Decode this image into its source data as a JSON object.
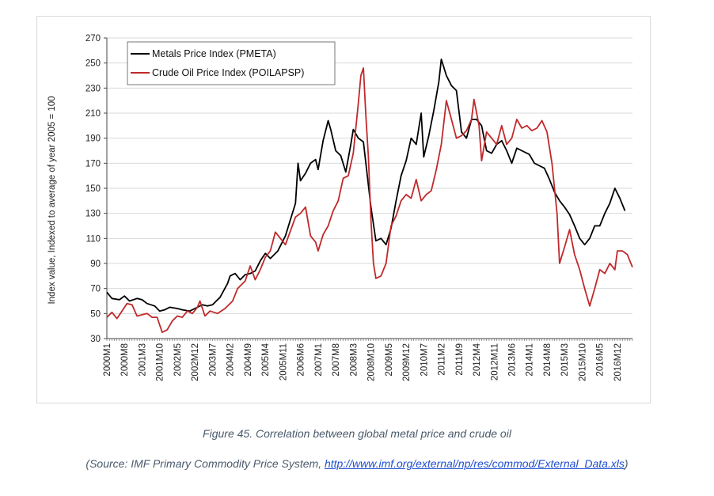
{
  "caption": {
    "figure": "Figure 45. Correlation between global metal price and crude oil",
    "source_prefix": "(Source: IMF Primary Commodity Price System, ",
    "source_link": "http://www.imf.org/external/np/res/commod/External_Data.xls",
    "source_suffix": ")"
  },
  "chart_data": {
    "type": "line",
    "title": "",
    "xlabel": "",
    "ylabel": "Index value, Indexed to average of year 2005 = 100",
    "ylim": [
      30,
      270
    ],
    "yticks": [
      30,
      50,
      70,
      90,
      110,
      130,
      150,
      170,
      190,
      210,
      230,
      250,
      270
    ],
    "xtick_labels": [
      "2000M1",
      "2000M8",
      "2001M3",
      "2001M10",
      "2002M5",
      "2002M12",
      "2003M7",
      "2004M2",
      "2004M9",
      "2005M4",
      "2005M11",
      "2006M6",
      "2007M1",
      "2007M8",
      "2008M3",
      "2008M10",
      "2009M5",
      "2009M12",
      "2010M7",
      "2011M2",
      "2011M9",
      "2012M4",
      "2012M11",
      "2013M6",
      "2014M1",
      "2014M8",
      "2015M3",
      "2015M10",
      "2016M5",
      "2016M12"
    ],
    "grid": true,
    "legend_position": "top-left",
    "series": [
      {
        "name": "Metals Price Index (PMETA)",
        "color": "#000000",
        "points": [
          [
            "2000-01",
            67
          ],
          [
            "2000-03",
            62
          ],
          [
            "2000-06",
            61
          ],
          [
            "2000-08",
            64
          ],
          [
            "2000-10",
            60
          ],
          [
            "2001-01",
            62
          ],
          [
            "2001-03",
            61
          ],
          [
            "2001-05",
            58
          ],
          [
            "2001-08",
            56
          ],
          [
            "2001-10",
            52
          ],
          [
            "2001-12",
            53
          ],
          [
            "2002-02",
            55
          ],
          [
            "2002-05",
            54
          ],
          [
            "2002-07",
            53
          ],
          [
            "2002-10",
            52
          ],
          [
            "2002-12",
            54
          ],
          [
            "2003-03",
            57
          ],
          [
            "2003-05",
            56
          ],
          [
            "2003-07",
            57
          ],
          [
            "2003-10",
            63
          ],
          [
            "2004-01",
            74
          ],
          [
            "2004-02",
            80
          ],
          [
            "2004-04",
            82
          ],
          [
            "2004-06",
            77
          ],
          [
            "2004-08",
            81
          ],
          [
            "2004-10",
            82
          ],
          [
            "2004-12",
            84
          ],
          [
            "2005-02",
            92
          ],
          [
            "2005-04",
            98
          ],
          [
            "2005-06",
            94
          ],
          [
            "2005-09",
            100
          ],
          [
            "2005-12",
            112
          ],
          [
            "2006-02",
            125
          ],
          [
            "2006-04",
            138
          ],
          [
            "2006-05",
            170
          ],
          [
            "2006-06",
            156
          ],
          [
            "2006-08",
            162
          ],
          [
            "2006-10",
            170
          ],
          [
            "2006-12",
            173
          ],
          [
            "2007-01",
            165
          ],
          [
            "2007-03",
            188
          ],
          [
            "2007-05",
            204
          ],
          [
            "2007-06",
            197
          ],
          [
            "2007-08",
            180
          ],
          [
            "2007-10",
            176
          ],
          [
            "2007-12",
            163
          ],
          [
            "2008-02",
            185
          ],
          [
            "2008-03",
            197
          ],
          [
            "2008-05",
            190
          ],
          [
            "2008-07",
            187
          ],
          [
            "2008-08",
            170
          ],
          [
            "2008-10",
            135
          ],
          [
            "2008-12",
            108
          ],
          [
            "2009-02",
            110
          ],
          [
            "2009-04",
            105
          ],
          [
            "2009-06",
            118
          ],
          [
            "2009-08",
            140
          ],
          [
            "2009-10",
            160
          ],
          [
            "2009-12",
            172
          ],
          [
            "2010-02",
            190
          ],
          [
            "2010-04",
            185
          ],
          [
            "2010-06",
            210
          ],
          [
            "2010-07",
            175
          ],
          [
            "2010-09",
            192
          ],
          [
            "2010-11",
            212
          ],
          [
            "2011-01",
            235
          ],
          [
            "2011-02",
            253
          ],
          [
            "2011-04",
            240
          ],
          [
            "2011-06",
            232
          ],
          [
            "2011-08",
            228
          ],
          [
            "2011-10",
            195
          ],
          [
            "2011-12",
            190
          ],
          [
            "2012-02",
            205
          ],
          [
            "2012-04",
            205
          ],
          [
            "2012-06",
            200
          ],
          [
            "2012-08",
            180
          ],
          [
            "2012-10",
            178
          ],
          [
            "2012-12",
            185
          ],
          [
            "2013-02",
            188
          ],
          [
            "2013-04",
            180
          ],
          [
            "2013-06",
            170
          ],
          [
            "2013-08",
            182
          ],
          [
            "2013-10",
            180
          ],
          [
            "2014-01",
            177
          ],
          [
            "2014-03",
            170
          ],
          [
            "2014-05",
            168
          ],
          [
            "2014-07",
            166
          ],
          [
            "2014-09",
            157
          ],
          [
            "2014-11",
            147
          ],
          [
            "2015-01",
            140
          ],
          [
            "2015-03",
            135
          ],
          [
            "2015-05",
            129
          ],
          [
            "2015-07",
            120
          ],
          [
            "2015-09",
            110
          ],
          [
            "2015-11",
            105
          ],
          [
            "2016-01",
            110
          ],
          [
            "2016-03",
            120
          ],
          [
            "2016-05",
            120
          ],
          [
            "2016-07",
            130
          ],
          [
            "2016-09",
            138
          ],
          [
            "2016-11",
            150
          ],
          [
            "2017-01",
            142
          ],
          [
            "2017-03",
            132
          ]
        ]
      },
      {
        "name": "Crude Oil Price Index (POILAPSP)",
        "color": "#c0292b",
        "points": [
          [
            "2000-01",
            47
          ],
          [
            "2000-03",
            51
          ],
          [
            "2000-05",
            46
          ],
          [
            "2000-07",
            52
          ],
          [
            "2000-09",
            58
          ],
          [
            "2000-11",
            57
          ],
          [
            "2001-01",
            48
          ],
          [
            "2001-03",
            49
          ],
          [
            "2001-05",
            50
          ],
          [
            "2001-07",
            47
          ],
          [
            "2001-09",
            47
          ],
          [
            "2001-11",
            35
          ],
          [
            "2002-01",
            37
          ],
          [
            "2002-03",
            44
          ],
          [
            "2002-05",
            48
          ],
          [
            "2002-07",
            47
          ],
          [
            "2002-09",
            52
          ],
          [
            "2002-11",
            50
          ],
          [
            "2003-01",
            55
          ],
          [
            "2003-02",
            60
          ],
          [
            "2003-04",
            48
          ],
          [
            "2003-06",
            52
          ],
          [
            "2003-09",
            50
          ],
          [
            "2003-12",
            54
          ],
          [
            "2004-03",
            60
          ],
          [
            "2004-05",
            70
          ],
          [
            "2004-08",
            76
          ],
          [
            "2004-10",
            88
          ],
          [
            "2004-12",
            77
          ],
          [
            "2005-02",
            85
          ],
          [
            "2005-04",
            95
          ],
          [
            "2005-06",
            100
          ],
          [
            "2005-08",
            115
          ],
          [
            "2005-10",
            110
          ],
          [
            "2005-12",
            105
          ],
          [
            "2006-02",
            116
          ],
          [
            "2006-04",
            127
          ],
          [
            "2006-06",
            130
          ],
          [
            "2006-08",
            135
          ],
          [
            "2006-10",
            112
          ],
          [
            "2006-12",
            107
          ],
          [
            "2007-01",
            100
          ],
          [
            "2007-03",
            113
          ],
          [
            "2007-05",
            120
          ],
          [
            "2007-07",
            132
          ],
          [
            "2007-09",
            140
          ],
          [
            "2007-11",
            158
          ],
          [
            "2008-01",
            160
          ],
          [
            "2008-03",
            178
          ],
          [
            "2008-05",
            218
          ],
          [
            "2008-06",
            240
          ],
          [
            "2008-07",
            246
          ],
          [
            "2008-08",
            208
          ],
          [
            "2008-09",
            175
          ],
          [
            "2008-10",
            125
          ],
          [
            "2008-11",
            90
          ],
          [
            "2008-12",
            78
          ],
          [
            "2009-02",
            80
          ],
          [
            "2009-04",
            90
          ],
          [
            "2009-06",
            120
          ],
          [
            "2009-08",
            128
          ],
          [
            "2009-10",
            140
          ],
          [
            "2009-12",
            145
          ],
          [
            "2010-02",
            142
          ],
          [
            "2010-04",
            157
          ],
          [
            "2010-06",
            140
          ],
          [
            "2010-08",
            145
          ],
          [
            "2010-10",
            148
          ],
          [
            "2010-12",
            165
          ],
          [
            "2011-02",
            185
          ],
          [
            "2011-04",
            220
          ],
          [
            "2011-06",
            205
          ],
          [
            "2011-08",
            190
          ],
          [
            "2011-10",
            192
          ],
          [
            "2011-12",
            196
          ],
          [
            "2012-02",
            205
          ],
          [
            "2012-03",
            221
          ],
          [
            "2012-05",
            200
          ],
          [
            "2012-06",
            172
          ],
          [
            "2012-08",
            195
          ],
          [
            "2012-10",
            190
          ],
          [
            "2012-12",
            185
          ],
          [
            "2013-02",
            200
          ],
          [
            "2013-04",
            185
          ],
          [
            "2013-06",
            190
          ],
          [
            "2013-08",
            205
          ],
          [
            "2013-10",
            198
          ],
          [
            "2013-12",
            200
          ],
          [
            "2014-02",
            196
          ],
          [
            "2014-04",
            198
          ],
          [
            "2014-06",
            204
          ],
          [
            "2014-08",
            195
          ],
          [
            "2014-10",
            170
          ],
          [
            "2014-12",
            130
          ],
          [
            "2015-01",
            90
          ],
          [
            "2015-03",
            103
          ],
          [
            "2015-05",
            117
          ],
          [
            "2015-07",
            97
          ],
          [
            "2015-09",
            85
          ],
          [
            "2015-11",
            70
          ],
          [
            "2016-01",
            56
          ],
          [
            "2016-03",
            70
          ],
          [
            "2016-05",
            85
          ],
          [
            "2016-07",
            82
          ],
          [
            "2016-09",
            90
          ],
          [
            "2016-11",
            85
          ],
          [
            "2016-12",
            100
          ],
          [
            "2017-02",
            100
          ],
          [
            "2017-04",
            97
          ],
          [
            "2017-06",
            87
          ]
        ]
      }
    ]
  }
}
